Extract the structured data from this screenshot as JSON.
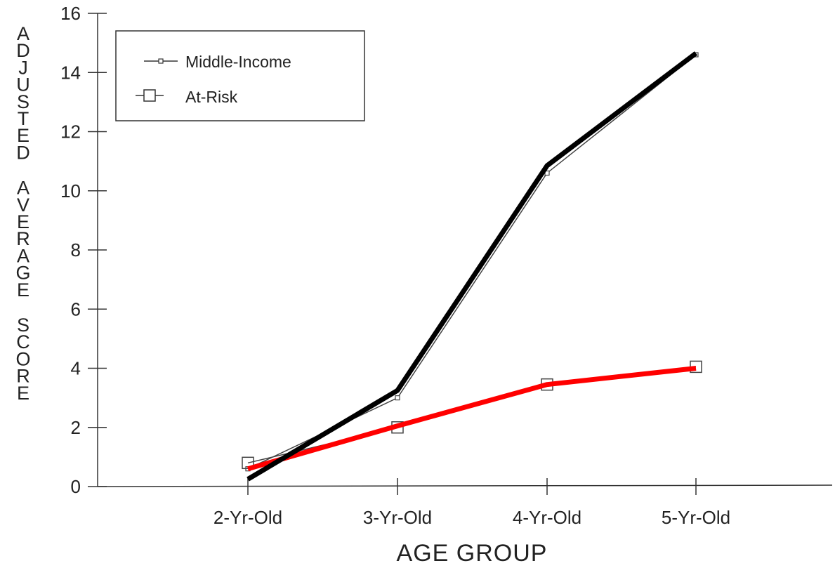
{
  "chart_data": {
    "type": "line",
    "title": "",
    "xlabel": "AGE GROUP",
    "ylabel": "ADJUSTED AVERAGE SCORE",
    "categories": [
      "2-Yr-Old",
      "3-Yr-Old",
      "4-Yr-Old",
      "5-Yr-Old"
    ],
    "ylim": [
      0,
      16
    ],
    "yticks": [
      0,
      2,
      4,
      6,
      8,
      10,
      12,
      14,
      16
    ],
    "legend_position": "top-left",
    "series": [
      {
        "name": "Middle-Income",
        "marker": "small-square",
        "values": [
          0.6,
          3.0,
          10.6,
          14.6
        ],
        "highlight_values": [
          0.25,
          3.25,
          10.85,
          14.65
        ],
        "highlight_color": "#000000"
      },
      {
        "name": "At-Risk",
        "marker": "open-square",
        "values": [
          0.8,
          2.0,
          3.45,
          4.05
        ],
        "highlight_values": [
          0.6,
          2.05,
          3.45,
          4.0
        ],
        "highlight_color": "#ff0000"
      }
    ],
    "grid": false
  }
}
